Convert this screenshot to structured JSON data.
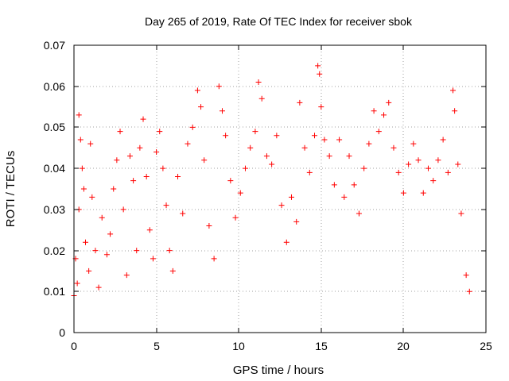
{
  "chart_data": {
    "type": "scatter",
    "title": "Day 265 of 2019, Rate Of TEC Index for receiver sbok",
    "xlabel": "GPS time / hours",
    "ylabel": "ROTI / TECUs",
    "xlim": [
      0,
      25
    ],
    "ylim": [
      0,
      0.07
    ],
    "x_ticks": [
      "0",
      "5",
      "10",
      "15",
      "20",
      "25"
    ],
    "y_ticks": [
      "0",
      "0.01",
      "0.02",
      "0.03",
      "0.04",
      "0.05",
      "0.06",
      "0.07"
    ],
    "grid": true,
    "marker": "+",
    "color": "#ff0000",
    "series": [
      {
        "points": [
          [
            0.0,
            0.009
          ],
          [
            0.1,
            0.018
          ],
          [
            0.2,
            0.012
          ],
          [
            0.3,
            0.03
          ],
          [
            0.3,
            0.053
          ],
          [
            0.4,
            0.047
          ],
          [
            0.5,
            0.04
          ],
          [
            0.6,
            0.035
          ],
          [
            0.7,
            0.022
          ],
          [
            0.9,
            0.015
          ],
          [
            1.0,
            0.046
          ],
          [
            1.1,
            0.033
          ],
          [
            1.3,
            0.02
          ],
          [
            1.5,
            0.011
          ],
          [
            1.7,
            0.028
          ],
          [
            2.0,
            0.019
          ],
          [
            2.2,
            0.024
          ],
          [
            2.4,
            0.035
          ],
          [
            2.6,
            0.042
          ],
          [
            2.8,
            0.049
          ],
          [
            3.0,
            0.03
          ],
          [
            3.2,
            0.014
          ],
          [
            3.4,
            0.043
          ],
          [
            3.6,
            0.037
          ],
          [
            3.8,
            0.02
          ],
          [
            4.0,
            0.045
          ],
          [
            4.2,
            0.052
          ],
          [
            4.4,
            0.038
          ],
          [
            4.6,
            0.025
          ],
          [
            4.8,
            0.018
          ],
          [
            5.0,
            0.044
          ],
          [
            5.2,
            0.049
          ],
          [
            5.4,
            0.04
          ],
          [
            5.6,
            0.031
          ],
          [
            5.8,
            0.02
          ],
          [
            6.0,
            0.015
          ],
          [
            6.3,
            0.038
          ],
          [
            6.6,
            0.029
          ],
          [
            6.9,
            0.046
          ],
          [
            7.2,
            0.05
          ],
          [
            7.5,
            0.059
          ],
          [
            7.7,
            0.055
          ],
          [
            7.9,
            0.042
          ],
          [
            8.2,
            0.026
          ],
          [
            8.5,
            0.018
          ],
          [
            8.8,
            0.06
          ],
          [
            9.0,
            0.054
          ],
          [
            9.2,
            0.048
          ],
          [
            9.5,
            0.037
          ],
          [
            9.8,
            0.028
          ],
          [
            10.1,
            0.034
          ],
          [
            10.4,
            0.04
          ],
          [
            10.7,
            0.045
          ],
          [
            11.0,
            0.049
          ],
          [
            11.2,
            0.061
          ],
          [
            11.4,
            0.057
          ],
          [
            11.7,
            0.043
          ],
          [
            12.0,
            0.041
          ],
          [
            12.3,
            0.048
          ],
          [
            12.6,
            0.031
          ],
          [
            12.9,
            0.022
          ],
          [
            13.2,
            0.033
          ],
          [
            13.5,
            0.027
          ],
          [
            13.7,
            0.056
          ],
          [
            14.0,
            0.045
          ],
          [
            14.3,
            0.039
          ],
          [
            14.6,
            0.048
          ],
          [
            14.8,
            0.065
          ],
          [
            14.9,
            0.063
          ],
          [
            15.0,
            0.055
          ],
          [
            15.2,
            0.047
          ],
          [
            15.5,
            0.043
          ],
          [
            15.8,
            0.036
          ],
          [
            16.1,
            0.047
          ],
          [
            16.4,
            0.033
          ],
          [
            16.7,
            0.043
          ],
          [
            17.0,
            0.036
          ],
          [
            17.3,
            0.029
          ],
          [
            17.6,
            0.04
          ],
          [
            17.9,
            0.046
          ],
          [
            18.2,
            0.054
          ],
          [
            18.5,
            0.049
          ],
          [
            18.8,
            0.053
          ],
          [
            19.1,
            0.056
          ],
          [
            19.4,
            0.045
          ],
          [
            19.7,
            0.039
          ],
          [
            20.0,
            0.034
          ],
          [
            20.3,
            0.041
          ],
          [
            20.6,
            0.046
          ],
          [
            20.9,
            0.042
          ],
          [
            21.2,
            0.034
          ],
          [
            21.5,
            0.04
          ],
          [
            21.8,
            0.037
          ],
          [
            22.1,
            0.042
          ],
          [
            22.4,
            0.047
          ],
          [
            22.7,
            0.039
          ],
          [
            23.0,
            0.059
          ],
          [
            23.1,
            0.054
          ],
          [
            23.3,
            0.041
          ],
          [
            23.5,
            0.029
          ],
          [
            23.8,
            0.014
          ],
          [
            24.0,
            0.01
          ]
        ]
      }
    ]
  }
}
